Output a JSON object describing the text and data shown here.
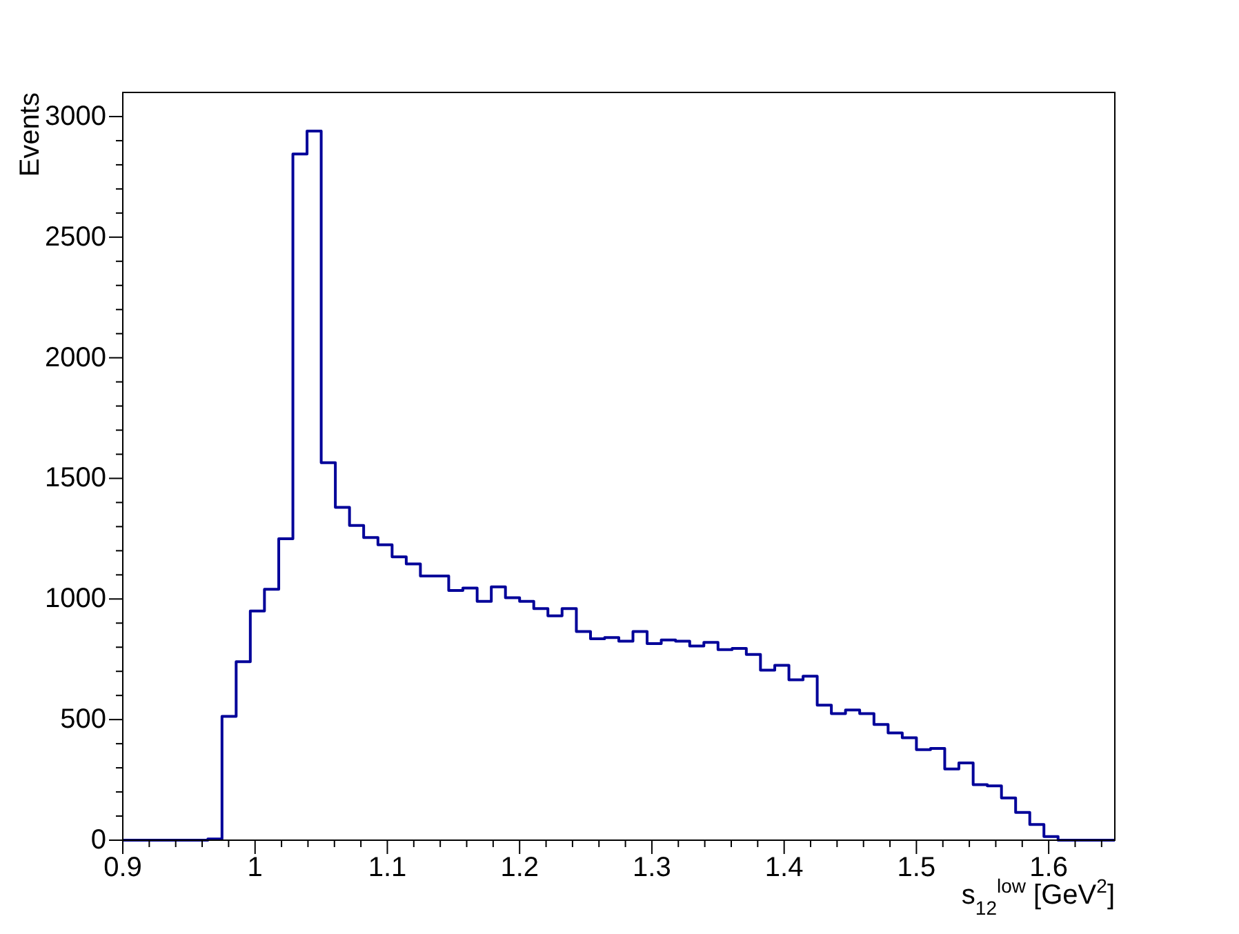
{
  "chart_data": {
    "type": "histogram",
    "xlabel": "s$_{12}$$^{low}$ [GeV$^{2}$]",
    "ylabel": "Events",
    "color": "#000099",
    "bins": [
      0.9,
      0.9107,
      0.9214,
      0.9321,
      0.9429,
      0.9536,
      0.9643,
      0.975,
      0.9857,
      0.9964,
      1.0071,
      1.0179,
      1.0286,
      1.0393,
      1.05,
      1.0607,
      1.0714,
      1.0821,
      1.0929,
      1.1036,
      1.1143,
      1.125,
      1.1357,
      1.1464,
      1.1571,
      1.1679,
      1.1786,
      1.1893,
      1.2,
      1.2107,
      1.2214,
      1.2321,
      1.2429,
      1.2536,
      1.2643,
      1.275,
      1.2857,
      1.2964,
      1.3071,
      1.3179,
      1.3286,
      1.3393,
      1.35,
      1.3607,
      1.3714,
      1.3821,
      1.3929,
      1.4036,
      1.4143,
      1.425,
      1.4357,
      1.4464,
      1.4571,
      1.4679,
      1.4786,
      1.4893,
      1.5,
      1.5107,
      1.5214,
      1.5321,
      1.5429,
      1.5536,
      1.5643,
      1.575,
      1.5857,
      1.5964,
      1.6071,
      1.6179,
      1.6286,
      1.6393,
      1.65
    ],
    "values": [
      0,
      0,
      0,
      0,
      0,
      0,
      5,
      513,
      740,
      950,
      1040,
      1250,
      2845,
      2940,
      1565,
      1380,
      1305,
      1255,
      1225,
      1175,
      1145,
      1095,
      1095,
      1035,
      1045,
      990,
      1050,
      1005,
      990,
      960,
      930,
      960,
      865,
      835,
      840,
      825,
      865,
      815,
      830,
      825,
      805,
      820,
      790,
      795,
      770,
      705,
      725,
      665,
      680,
      560,
      525,
      540,
      525,
      480,
      445,
      425,
      375,
      380,
      295,
      320,
      230,
      225,
      175,
      115,
      65,
      15,
      0,
      0,
      0,
      0
    ],
    "xlim": [
      0.9,
      1.65
    ],
    "ylim": [
      0,
      3100
    ],
    "xticks": [
      0.9,
      {
        "value": 0.92,
        "label": null
      },
      {
        "value": 0.94,
        "label": null
      },
      {
        "value": 0.96,
        "label": null
      },
      {
        "value": 0.98,
        "label": null
      },
      1,
      {
        "value": 1.02,
        "label": null
      },
      {
        "value": 1.04,
        "label": null
      },
      {
        "value": 1.06,
        "label": null
      },
      {
        "value": 1.08,
        "label": null
      },
      1.1,
      {
        "value": 1.12,
        "label": null
      },
      {
        "value": 1.14,
        "label": null
      },
      {
        "value": 1.16,
        "label": null
      },
      {
        "value": 1.18,
        "label": null
      },
      1.2,
      {
        "value": 1.22,
        "label": null
      },
      {
        "value": 1.24,
        "label": null
      },
      {
        "value": 1.26,
        "label": null
      },
      {
        "value": 1.28,
        "label": null
      },
      1.3,
      {
        "value": 1.32,
        "label": null
      },
      {
        "value": 1.34,
        "label": null
      },
      {
        "value": 1.36,
        "label": null
      },
      {
        "value": 1.38,
        "label": null
      },
      1.4,
      {
        "value": 1.42,
        "label": null
      },
      {
        "value": 1.44,
        "label": null
      },
      {
        "value": 1.46,
        "label": null
      },
      {
        "value": 1.48,
        "label": null
      },
      1.5,
      {
        "value": 1.52,
        "label": null
      },
      {
        "value": 1.54,
        "label": null
      },
      {
        "value": 1.56,
        "label": null
      },
      {
        "value": 1.58,
        "label": null
      },
      1.6,
      {
        "value": 1.62,
        "label": null
      },
      {
        "value": 1.64,
        "label": null
      }
    ],
    "yticks": [
      0,
      {
        "value": 100,
        "label": null
      },
      {
        "value": 200,
        "label": null
      },
      {
        "value": 300,
        "label": null
      },
      {
        "value": 400,
        "label": null
      },
      500,
      {
        "value": 600,
        "label": null
      },
      {
        "value": 700,
        "label": null
      },
      {
        "value": 800,
        "label": null
      },
      {
        "value": 900,
        "label": null
      },
      1000,
      {
        "value": 1100,
        "label": null
      },
      {
        "value": 1200,
        "label": null
      },
      {
        "value": 1300,
        "label": null
      },
      {
        "value": 1400,
        "label": null
      },
      1500,
      {
        "value": 1600,
        "label": null
      },
      {
        "value": 1700,
        "label": null
      },
      {
        "value": 1800,
        "label": null
      },
      {
        "value": 1900,
        "label": null
      },
      2000,
      {
        "value": 2100,
        "label": null
      },
      {
        "value": 2200,
        "label": null
      },
      {
        "value": 2300,
        "label": null
      },
      {
        "value": 2400,
        "label": null
      },
      2500,
      {
        "value": 2600,
        "label": null
      },
      {
        "value": 2700,
        "label": null
      },
      {
        "value": 2800,
        "label": null
      },
      {
        "value": 2900,
        "label": null
      },
      3000
    ]
  }
}
